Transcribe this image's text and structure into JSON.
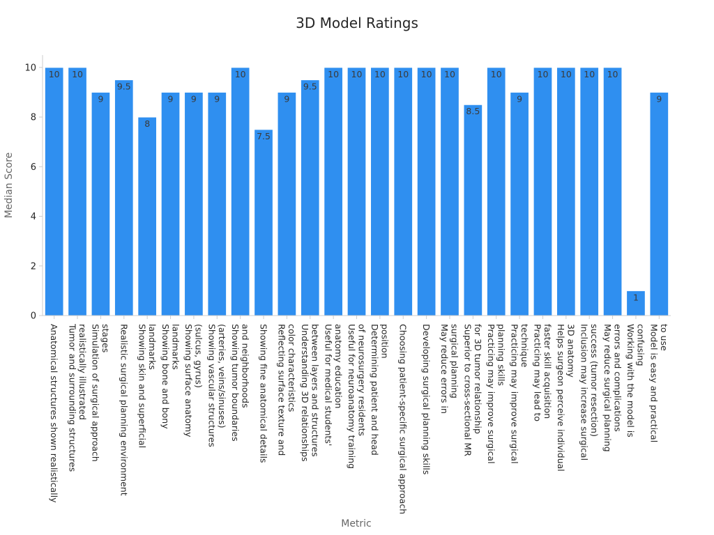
{
  "chart_data": {
    "type": "bar",
    "title": "3D Model Ratings",
    "xlabel": "Metric",
    "ylabel": "Median Score",
    "ylim": [
      0,
      10.5
    ],
    "yticks": [
      0,
      2,
      4,
      6,
      8,
      10
    ],
    "grid": false,
    "bar_color": "#2f8ff0",
    "categories": [
      [
        "Anatomical structures shown realistically"
      ],
      [
        "Tumor and surrounding structures",
        "realistically illustrated"
      ],
      [
        "Simulation of surgical approach",
        "stages"
      ],
      [
        "Realistic surgical planning environment"
      ],
      [
        "Showing skin and superficial",
        "landmarks"
      ],
      [
        "Showing bone and bony",
        "landmarks"
      ],
      [
        "Showing surface anatomy",
        "(sulcus, gyrus)"
      ],
      [
        "Showing vascular structures",
        "(arteries, veins/sinuses)"
      ],
      [
        "Showing tumor boundaries",
        "and neighborhoods"
      ],
      [
        "Showing fine anatomical details"
      ],
      [
        "Reflecting surface texture and",
        "color characteristics"
      ],
      [
        "Understanding 3D relationships",
        "between layers and structures"
      ],
      [
        "Useful for medical students'",
        "anatomy education"
      ],
      [
        "Useful for neuroanatomy training",
        "of neurosurgery residents"
      ],
      [
        "Determining patient and head",
        "position"
      ],
      [
        "Choosing patient-specific surgical approach"
      ],
      [
        "Developing surgical planning skills"
      ],
      [
        "May reduce errors in",
        "surgical planning"
      ],
      [
        "Superior to cross-sectional MR",
        "for 3D tumor relationship"
      ],
      [
        "Practicing may improve surgical",
        "planning skills"
      ],
      [
        "Practicing may improve surgical",
        "technique"
      ],
      [
        "Practicing may lead to",
        "faster skill acquisition"
      ],
      [
        "Helps surgeon perceive individual",
        "3D anatomy"
      ],
      [
        "Inclusion may increase surgical",
        "success (tumor resection)"
      ],
      [
        "May reduce surgical planning",
        "errors and complications"
      ],
      [
        "Working with the model is",
        "confusing"
      ],
      [
        "Model is easy and practical",
        "to use"
      ]
    ],
    "values": [
      10,
      10,
      9,
      9.5,
      8,
      9,
      9,
      9,
      10,
      7.5,
      9,
      9.5,
      10,
      10,
      10,
      10,
      10,
      10,
      8.5,
      10,
      9,
      10,
      10,
      10,
      10,
      1,
      9
    ],
    "data_labels": [
      "10",
      "10",
      "9",
      "9.5",
      "8",
      "9",
      "9",
      "9",
      "10",
      "7.5",
      "9",
      "9.5",
      "10",
      "10",
      "10",
      "10",
      "10",
      "10",
      "8.5",
      "10",
      "9",
      "10",
      "10",
      "10",
      "10",
      "1",
      "9"
    ]
  }
}
